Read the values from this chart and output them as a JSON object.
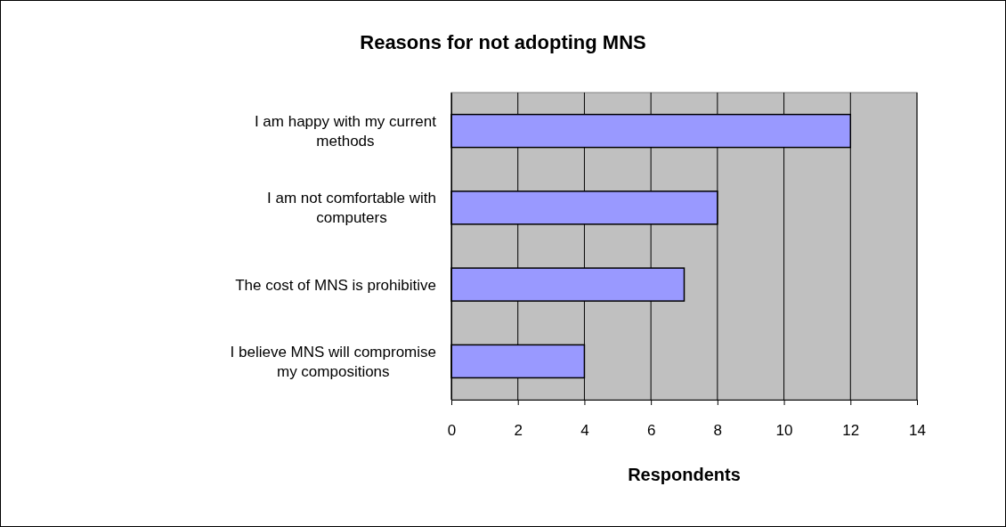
{
  "chart_data": {
    "type": "bar",
    "orientation": "horizontal",
    "title": "Reasons for not adopting MNS",
    "xlabel": "Respondents",
    "categories": [
      "I am happy with my current methods",
      "I am not comfortable with computers",
      "The cost of MNS is prohibitive",
      "I believe MNS will compromise my compositions"
    ],
    "values": [
      12,
      8,
      7,
      4
    ],
    "color": "#9999ff",
    "xlim": [
      0,
      14
    ],
    "xticks": [
      0,
      2,
      4,
      6,
      8,
      10,
      12,
      14
    ],
    "grid": "x"
  }
}
